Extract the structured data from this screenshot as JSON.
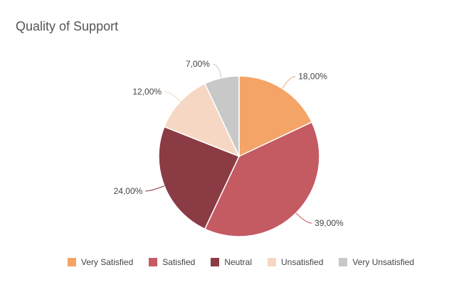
{
  "chart_data": {
    "type": "pie",
    "title": "Quality of Support",
    "legend_position": "bottom",
    "slices": [
      {
        "name": "Very Satisfied",
        "value": 18,
        "label": "18,00%",
        "color": "#f5a467"
      },
      {
        "name": "Satisfied",
        "value": 39,
        "label": "39,00%",
        "color": "#c45a62"
      },
      {
        "name": "Neutral",
        "value": 24,
        "label": "24,00%",
        "color": "#8b3b44"
      },
      {
        "name": "Unsatisfied",
        "value": 12,
        "label": "12,00%",
        "color": "#f6d7c3"
      },
      {
        "name": "Very Unsatisfied",
        "value": 7,
        "label": "7,00%",
        "color": "#c8c8c8"
      }
    ]
  }
}
